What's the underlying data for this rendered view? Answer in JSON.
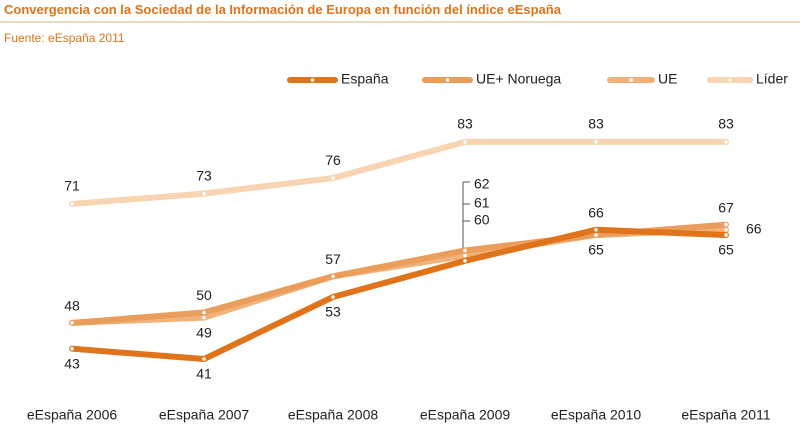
{
  "chart_data": {
    "type": "line",
    "title": "Convergencia con la Sociedad de la Información de Europa en función del índice eEspaña",
    "subtitle": "Fuente: eEspaña 2011",
    "categories": [
      "eEspaña 2006",
      "eEspaña 2007",
      "eEspaña 2008",
      "eEspaña 2009",
      "eEspaña 2010",
      "eEspaña 2011"
    ],
    "series": [
      {
        "name": "España",
        "color": "#e0741a",
        "values": [
          43,
          41,
          53,
          60,
          66,
          65
        ],
        "show_labels": [
          true,
          true,
          true,
          true,
          true,
          true
        ]
      },
      {
        "name": "UE+ Noruega",
        "color": "#eb9d5c",
        "values": [
          48,
          50,
          57,
          62,
          65,
          67
        ],
        "show_labels": [
          true,
          true,
          true,
          true,
          false,
          true
        ]
      },
      {
        "name": "UE",
        "color": "#f1b27a",
        "values": [
          48,
          49,
          57,
          61,
          65,
          66
        ],
        "show_labels": [
          false,
          true,
          false,
          true,
          true,
          true
        ]
      },
      {
        "name": "Líder",
        "color": "#f8d4b2",
        "values": [
          71,
          73,
          76,
          83,
          83,
          83
        ],
        "show_labels": [
          true,
          true,
          true,
          true,
          true,
          true
        ]
      }
    ],
    "legend": "top-right"
  }
}
